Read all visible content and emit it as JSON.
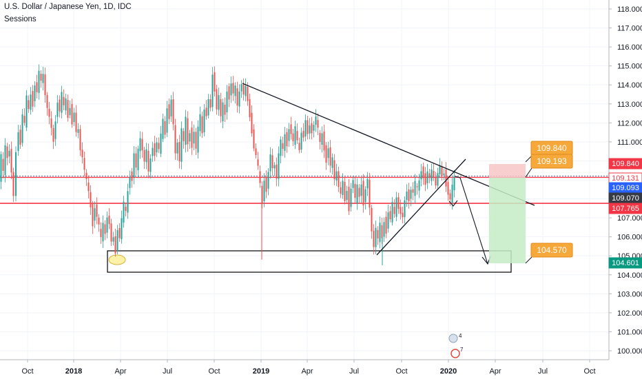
{
  "header": {
    "title": "U.S. Dollar / Japanese Yen, 1D, IDC",
    "subtitle": "Sessions"
  },
  "chart_data": {
    "type": "candlestick",
    "x_ticks": [
      "Oct",
      "2018",
      "Apr",
      "Jul",
      "Oct",
      "2019",
      "Apr",
      "Jul",
      "Oct",
      "2020",
      "Apr",
      "Jul",
      "Oct"
    ],
    "y_ticks": [
      "118.000",
      "117.000",
      "116.000",
      "115.000",
      "114.000",
      "113.000",
      "112.000",
      "111.000",
      "110.000",
      "109.000",
      "108.000",
      "107.000",
      "106.000",
      "105.000",
      "104.000",
      "103.000",
      "102.000",
      "101.000",
      "100.000"
    ],
    "ylim": [
      99.4,
      118.3
    ],
    "horizontal_levels": [
      109.131,
      107.765
    ],
    "price_labels": [
      {
        "text": "109.840",
        "value": 109.84,
        "style": "red"
      },
      {
        "text": "109.131",
        "value": 109.131,
        "style": "red-outline"
      },
      {
        "text": "109.093",
        "value": 109.093,
        "style": "blue"
      },
      {
        "text": "109.070",
        "value": 109.07,
        "style": "gray"
      },
      {
        "text": "107.765",
        "value": 107.765,
        "style": "red"
      },
      {
        "text": "104.601",
        "value": 104.601,
        "style": "green"
      }
    ],
    "position_tool": {
      "stop": "109.840",
      "entry": "109.193",
      "target": "104.570"
    },
    "price_path": [
      [
        0,
        108.9
      ],
      [
        3,
        110.2
      ],
      [
        6,
        109.4
      ],
      [
        9,
        110.9
      ],
      [
        12,
        110.3
      ],
      [
        15,
        110.6
      ],
      [
        18,
        109.3
      ],
      [
        21,
        108.0
      ],
      [
        25,
        110.4
      ],
      [
        28,
        111.6
      ],
      [
        31,
        111.0
      ],
      [
        34,
        112.5
      ],
      [
        37,
        111.9
      ],
      [
        40,
        113.3
      ],
      [
        43,
        112.7
      ],
      [
        46,
        113.6
      ],
      [
        49,
        113.0
      ],
      [
        52,
        114.0
      ],
      [
        55,
        113.5
      ],
      [
        58,
        114.6
      ],
      [
        61,
        114.2
      ],
      [
        64,
        114.7
      ],
      [
        67,
        113.6
      ],
      [
        70,
        112.8
      ],
      [
        73,
        112.2
      ],
      [
        76,
        111.6
      ],
      [
        79,
        111.0
      ],
      [
        82,
        112.2
      ],
      [
        85,
        113.2
      ],
      [
        88,
        112.6
      ],
      [
        91,
        113.5
      ],
      [
        94,
        112.8
      ],
      [
        97,
        113.3
      ],
      [
        100,
        112.4
      ],
      [
        103,
        112.9
      ],
      [
        106,
        111.9
      ],
      [
        109,
        112.4
      ],
      [
        112,
        111.4
      ],
      [
        115,
        111.7
      ],
      [
        118,
        110.7
      ],
      [
        121,
        110.3
      ],
      [
        124,
        109.5
      ],
      [
        127,
        108.9
      ],
      [
        130,
        108.3
      ],
      [
        133,
        107.6
      ],
      [
        136,
        106.7
      ],
      [
        139,
        107.6
      ],
      [
        142,
        107.0
      ],
      [
        145,
        106.5
      ],
      [
        148,
        105.9
      ],
      [
        151,
        106.8
      ],
      [
        154,
        106.3
      ],
      [
        157,
        107.1
      ],
      [
        160,
        106.6
      ],
      [
        163,
        105.6
      ],
      [
        166,
        105.9
      ],
      [
        169,
        105.2
      ],
      [
        172,
        106.5
      ],
      [
        175,
        106.0
      ],
      [
        178,
        106.9
      ],
      [
        181,
        107.7
      ],
      [
        184,
        107.3
      ],
      [
        187,
        108.5
      ],
      [
        190,
        109.3
      ],
      [
        193,
        109.0
      ],
      [
        196,
        110.3
      ],
      [
        199,
        109.5
      ],
      [
        202,
        110.6
      ],
      [
        205,
        111.3
      ],
      [
        208,
        110.7
      ],
      [
        211,
        110.0
      ],
      [
        214,
        110.5
      ],
      [
        217,
        109.3
      ],
      [
        220,
        110.1
      ],
      [
        223,
        110.8
      ],
      [
        226,
        110.4
      ],
      [
        229,
        111.0
      ],
      [
        232,
        110.5
      ],
      [
        235,
        111.3
      ],
      [
        238,
        112.2
      ],
      [
        241,
        111.5
      ],
      [
        244,
        112.9
      ],
      [
        247,
        112.2
      ],
      [
        250,
        113.1
      ],
      [
        253,
        111.8
      ],
      [
        256,
        110.4
      ],
      [
        259,
        111.1
      ],
      [
        262,
        110.1
      ],
      [
        265,
        111.7
      ],
      [
        268,
        110.9
      ],
      [
        271,
        112.2
      ],
      [
        274,
        110.9
      ],
      [
        277,
        111.6
      ],
      [
        280,
        110.8
      ],
      [
        283,
        111.5
      ],
      [
        286,
        110.5
      ],
      [
        289,
        111.7
      ],
      [
        292,
        112.5
      ],
      [
        295,
        111.6
      ],
      [
        298,
        112.8
      ],
      [
        301,
        112.3
      ],
      [
        304,
        113.1
      ],
      [
        307,
        112.7
      ],
      [
        310,
        114.6
      ],
      [
        313,
        113.8
      ],
      [
        316,
        112.8
      ],
      [
        319,
        113.4
      ],
      [
        322,
        112.2
      ],
      [
        325,
        113.0
      ],
      [
        328,
        112.5
      ],
      [
        331,
        113.8
      ],
      [
        334,
        113.3
      ],
      [
        337,
        114.0
      ],
      [
        340,
        113.4
      ],
      [
        343,
        113.9
      ],
      [
        346,
        113.0
      ],
      [
        349,
        113.8
      ],
      [
        352,
        114.1
      ],
      [
        355,
        113.4
      ],
      [
        358,
        113.8
      ],
      [
        361,
        113.1
      ],
      [
        364,
        112.4
      ],
      [
        367,
        111.6
      ],
      [
        370,
        110.7
      ],
      [
        373,
        110.2
      ],
      [
        376,
        109.6
      ],
      [
        379,
        108.8
      ],
      [
        382,
        107.9
      ],
      [
        385,
        109.1
      ],
      [
        388,
        108.4
      ],
      [
        391,
        109.3
      ],
      [
        394,
        110.2
      ],
      [
        397,
        109.6
      ],
      [
        400,
        109.9
      ],
      [
        403,
        109.2
      ],
      [
        406,
        110.4
      ],
      [
        409,
        111.0
      ],
      [
        412,
        110.5
      ],
      [
        415,
        111.4
      ],
      [
        418,
        110.9
      ],
      [
        421,
        111.8
      ],
      [
        424,
        111.4
      ],
      [
        427,
        110.9
      ],
      [
        430,
        111.7
      ],
      [
        433,
        111.1
      ],
      [
        436,
        110.7
      ],
      [
        439,
        111.6
      ],
      [
        442,
        111.2
      ],
      [
        445,
        112.0
      ],
      [
        448,
        111.3
      ],
      [
        451,
        111.9
      ],
      [
        454,
        111.6
      ],
      [
        457,
        112.0
      ],
      [
        460,
        112.3
      ],
      [
        463,
        111.6
      ],
      [
        466,
        110.9
      ],
      [
        469,
        111.5
      ],
      [
        472,
        110.7
      ],
      [
        475,
        110.0
      ],
      [
        478,
        110.6
      ],
      [
        481,
        109.6
      ],
      [
        484,
        110.1
      ],
      [
        487,
        109.1
      ],
      [
        490,
        109.6
      ],
      [
        493,
        108.7
      ],
      [
        496,
        108.2
      ],
      [
        499,
        108.8
      ],
      [
        502,
        107.8
      ],
      [
        505,
        108.5
      ],
      [
        508,
        107.5
      ],
      [
        511,
        108.6
      ],
      [
        514,
        108.9
      ],
      [
        517,
        107.9
      ],
      [
        520,
        108.7
      ],
      [
        523,
        108.2
      ],
      [
        526,
        108.9
      ],
      [
        529,
        107.7
      ],
      [
        532,
        108.4
      ],
      [
        535,
        108.9
      ],
      [
        538,
        107.5
      ],
      [
        541,
        106.4
      ],
      [
        544,
        105.6
      ],
      [
        547,
        106.5
      ],
      [
        550,
        105.8
      ],
      [
        553,
        106.6
      ],
      [
        556,
        105.9
      ],
      [
        559,
        106.9
      ],
      [
        562,
        106.3
      ],
      [
        565,
        107.3
      ],
      [
        568,
        106.8
      ],
      [
        571,
        107.7
      ],
      [
        574,
        107.2
      ],
      [
        577,
        108.2
      ],
      [
        580,
        107.6
      ],
      [
        583,
        107.2
      ],
      [
        586,
        106.9
      ],
      [
        589,
        107.8
      ],
      [
        592,
        108.4
      ],
      [
        595,
        108.0
      ],
      [
        598,
        108.6
      ],
      [
        601,
        108.3
      ],
      [
        604,
        108.8
      ],
      [
        607,
        108.5
      ],
      [
        610,
        109.0
      ],
      [
        613,
        109.6
      ],
      [
        616,
        109.2
      ],
      [
        619,
        108.7
      ],
      [
        622,
        109.3
      ],
      [
        625,
        109.0
      ],
      [
        628,
        109.6
      ],
      [
        631,
        109.3
      ],
      [
        634,
        108.8
      ],
      [
        637,
        109.3
      ],
      [
        640,
        109.6
      ],
      [
        643,
        109.1
      ],
      [
        646,
        109.4
      ],
      [
        649,
        108.8
      ],
      [
        652,
        108.3
      ],
      [
        655,
        107.9
      ],
      [
        658,
        108.6
      ],
      [
        661,
        109.1
      ]
    ]
  }
}
